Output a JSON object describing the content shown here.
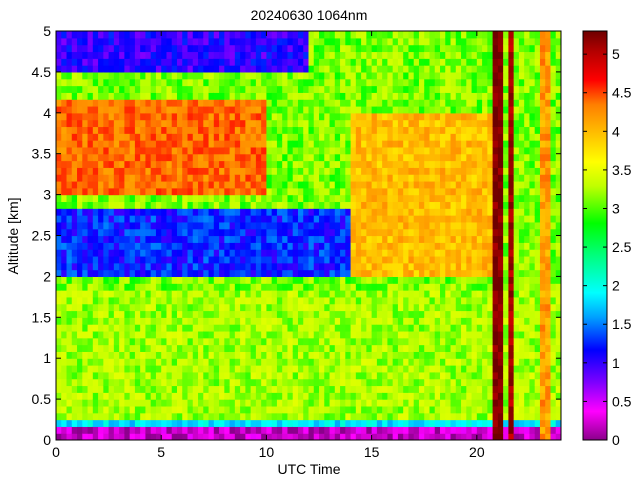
{
  "chart_data": {
    "type": "heatmap",
    "title": "20240630 1064nm",
    "xlabel": "UTC Time",
    "ylabel": "Altitude [km]",
    "xlim": [
      0,
      24
    ],
    "ylim": [
      0,
      5
    ],
    "x_ticks": [
      "0",
      "5",
      "10",
      "15",
      "20"
    ],
    "y_ticks": [
      "0",
      "0.5",
      "1",
      "1.5",
      "2",
      "2.5",
      "3",
      "3.5",
      "4",
      "4.5",
      "5"
    ],
    "colorbar": {
      "range": [
        0,
        5.3
      ],
      "ticks": [
        "0",
        "0.5",
        "1",
        "1.5",
        "2",
        "2.5",
        "3",
        "3.5",
        "4",
        "4.5",
        "5"
      ],
      "colormap": [
        "#8b008b",
        "#ff00ff",
        "#7f00ff",
        "#0000ff",
        "#00a0ff",
        "#00ffff",
        "#00ff7f",
        "#00ff00",
        "#bfff00",
        "#ffff00",
        "#ffbf00",
        "#ff7f00",
        "#ff0000",
        "#b40000",
        "#6e0000"
      ]
    },
    "features": [
      {
        "name": "surface layer",
        "alt_range_km": [
          0,
          0.2
        ],
        "value": 0.2
      },
      {
        "name": "near-surface band",
        "alt_range_km": [
          0.2,
          0.25
        ],
        "value": 1.8
      },
      {
        "name": "boundary layer",
        "alt_range_km": [
          0.25,
          1.8
        ],
        "value": 3.0
      },
      {
        "name": "lower clean layer",
        "time_range": [
          0,
          14
        ],
        "alt_range_km": [
          2.0,
          2.8
        ],
        "value": 1.2
      },
      {
        "name": "elevated aerosol layer",
        "time_range": [
          0,
          10
        ],
        "alt_range_km": [
          3.0,
          4.2
        ],
        "value": 4.2
      },
      {
        "name": "upper clean air",
        "time_range": [
          0,
          12
        ],
        "alt_range_km": [
          4.5,
          5.0
        ],
        "value": 1.0
      },
      {
        "name": "afternoon aerosol",
        "time_range": [
          14,
          21
        ],
        "alt_range_km": [
          2.0,
          4.0
        ],
        "value": 3.8
      },
      {
        "name": "cloud column",
        "time_range": [
          20.8,
          21.2
        ],
        "alt_range_km": [
          0,
          5
        ],
        "value": 5.2
      },
      {
        "name": "cloud column",
        "time_range": [
          21.6,
          21.8
        ],
        "alt_range_km": [
          0,
          5
        ],
        "value": 5.0
      },
      {
        "name": "cloud column",
        "time_range": [
          23.0,
          23.4
        ],
        "alt_range_km": [
          0,
          5
        ],
        "value": 4.0
      }
    ]
  }
}
